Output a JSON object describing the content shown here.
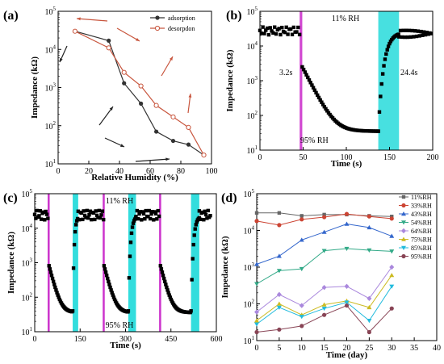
{
  "chart_data": [
    {
      "panel": "(a)",
      "type": "line",
      "xlabel": "Relative Humidity (%)",
      "ylabel": "Impedance (kΩ)",
      "xlim": [
        0,
        100
      ],
      "ylim_log": [
        1,
        5
      ],
      "xticks": [
        "0",
        "20",
        "40",
        "60",
        "80",
        "100"
      ],
      "yticks": [
        "10^1",
        "10^2",
        "10^3",
        "10^4",
        "10^5"
      ],
      "legend_position": "top-right",
      "series": [
        {
          "name": "adsorption",
          "color": "#333333",
          "x": [
            11,
            33,
            43,
            54,
            64,
            75,
            85,
            95
          ],
          "y": [
            30000,
            17000,
            1300,
            380,
            70,
            40,
            32,
            17
          ]
        },
        {
          "name": "desorpdon",
          "color": "#c8553d",
          "x": [
            11,
            33,
            43,
            54,
            64,
            75,
            85,
            95
          ],
          "y": [
            30000,
            11000,
            2500,
            1100,
            340,
            170,
            90,
            17
          ]
        }
      ],
      "arrows": [
        "brown-left-top",
        "brown-diagonal",
        "brown-up-right",
        "black-down-left",
        "black-diagonal",
        "black-right"
      ]
    },
    {
      "panel": "(b)",
      "type": "scatter",
      "xlabel": "Time (s)",
      "ylabel": "Impedance (kΩ)",
      "xlim": [
        0,
        200
      ],
      "ylim_log": [
        1,
        5
      ],
      "xticks": [
        "0",
        "50",
        "100",
        "150",
        "200"
      ],
      "yticks": [
        "10^1",
        "10^2",
        "10^3",
        "10^4",
        "10^5"
      ],
      "annotations": {
        "top": "11% RH",
        "bottom": "95% RH",
        "response": "3.2s",
        "recovery": "24.4s"
      },
      "shaded": [
        {
          "from": 46,
          "to": 49,
          "color": "#cc33cc"
        },
        {
          "from": 137,
          "to": 161,
          "color": "#33dddd"
        }
      ],
      "segments": [
        {
          "x_from": 0,
          "x_to": 46,
          "level": 28000
        },
        {
          "x_from": 49,
          "x_to": 137,
          "decay_from": 2500,
          "decay_to": 35
        },
        {
          "x_from": 137,
          "x_to": 161,
          "rise_from": 35,
          "rise_to": 22000
        },
        {
          "x_from": 161,
          "x_to": 200,
          "level": 23000
        }
      ]
    },
    {
      "panel": "(c)",
      "type": "scatter",
      "xlabel": "Time (s)",
      "ylabel": "Impedance (kΩ)",
      "xlim": [
        0,
        660
      ],
      "ylim_log": [
        1,
        5
      ],
      "xticks": [
        "0",
        "150",
        "300",
        "450",
        "600"
      ],
      "yticks": [
        "10^1",
        "10^2",
        "10^3",
        "10^4",
        "10^5"
      ],
      "annotations": {
        "top": "11% RH",
        "bottom": "95% RH"
      },
      "cycles": [
        {
          "high_from": 0,
          "high_to": 50,
          "drop_at": 50,
          "low_to": 138,
          "rise_to": 158
        },
        {
          "high_from": 158,
          "high_to": 250,
          "drop_at": 250,
          "low_to": 340,
          "rise_to": 368
        },
        {
          "high_from": 368,
          "high_to": 455,
          "drop_at": 455,
          "low_to": 568,
          "rise_to": 598
        },
        {
          "high_from": 598,
          "high_to": 640
        }
      ],
      "shaded_magenta": [
        50,
        250,
        455
      ],
      "shaded_cyan": [
        [
          138,
          158
        ],
        [
          340,
          368
        ],
        [
          568,
          598
        ]
      ]
    },
    {
      "panel": "(d)",
      "type": "line",
      "xlabel": "Time (day)",
      "ylabel": "Impedance (kΩ)",
      "xlim": [
        0,
        40
      ],
      "ylim_log": [
        1,
        5
      ],
      "xticks": [
        "0",
        "5",
        "10",
        "15",
        "20",
        "25",
        "30",
        "35",
        "40"
      ],
      "yticks": [
        "10^1",
        "10^2",
        "10^3",
        "10^4",
        "10^5"
      ],
      "legend_position": "right",
      "x": [
        0,
        5,
        10,
        15,
        20,
        25,
        30
      ],
      "series": [
        {
          "name": "11%RH",
          "color": "#666666",
          "values": [
            30000,
            30000,
            25000,
            27000,
            27000,
            25000,
            24000
          ]
        },
        {
          "name": "33%RH",
          "color": "#cc4433",
          "values": [
            18000,
            14000,
            20000,
            23000,
            28000,
            24000,
            21000
          ]
        },
        {
          "name": "43%RH",
          "color": "#3366cc",
          "values": [
            1200,
            2000,
            5500,
            9000,
            15000,
            12000,
            7000
          ]
        },
        {
          "name": "54%RH",
          "color": "#33aa88",
          "values": [
            350,
            800,
            900,
            2800,
            3200,
            2900,
            2700
          ]
        },
        {
          "name": "64%RH",
          "color": "#aa88dd",
          "values": [
            60,
            180,
            90,
            280,
            300,
            140,
            1000
          ]
        },
        {
          "name": "75%RH",
          "color": "#ccbb22",
          "values": [
            35,
            100,
            50,
            95,
            120,
            80,
            600
          ]
        },
        {
          "name": "85%RH",
          "color": "#22bbdd",
          "values": [
            28,
            80,
            45,
            75,
            110,
            35,
            300
          ]
        },
        {
          "name": "95%RH",
          "color": "#884455",
          "values": [
            17,
            20,
            25,
            50,
            90,
            17,
            75
          ]
        }
      ]
    }
  ]
}
